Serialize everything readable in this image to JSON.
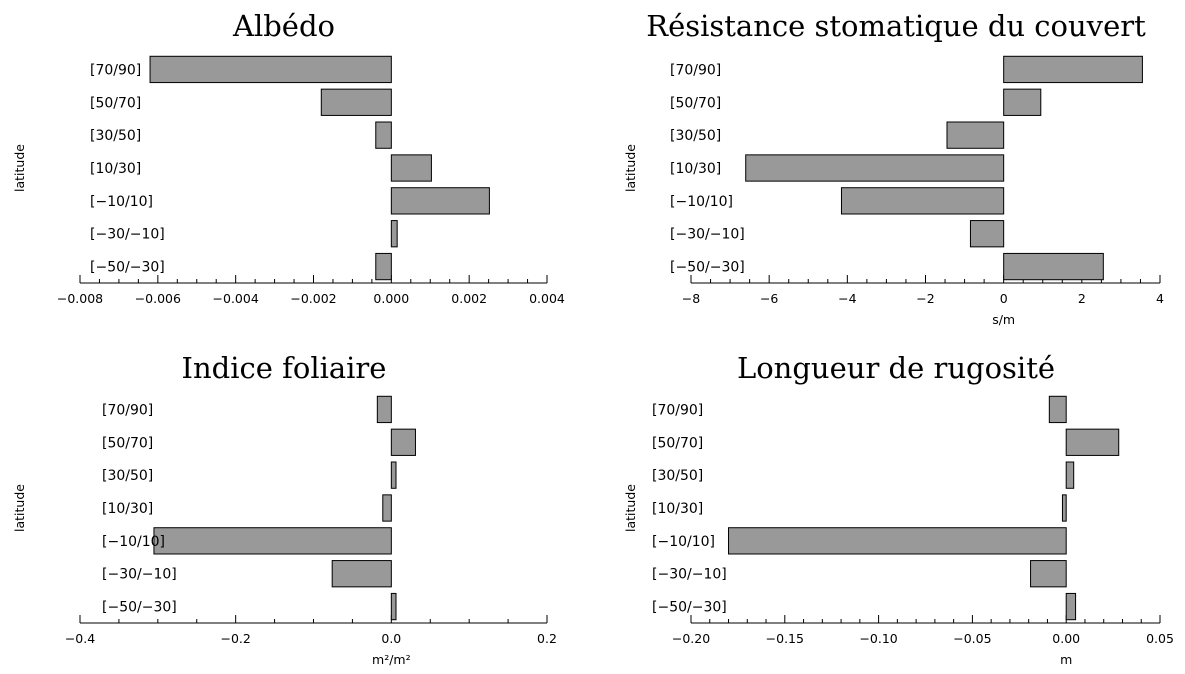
{
  "chart_data": [
    {
      "type": "bar",
      "orientation": "horizontal",
      "title": "Albédo",
      "ylabel": "latitude",
      "xlabel": "",
      "categories": [
        "[70/90]",
        "[50/70]",
        "[30/50]",
        "[10/30]",
        "[−10/10]",
        "[−30/−10]",
        "[−50/−30]"
      ],
      "values": [
        -0.0062,
        -0.0018,
        -0.0004,
        0.00103,
        0.00252,
        0.00015,
        -0.0004
      ],
      "xlim": [
        -0.008,
        0.004
      ],
      "xticks": [
        -0.008,
        -0.006,
        -0.004,
        -0.002,
        0.0,
        0.002,
        0.004
      ],
      "xtick_labels": [
        "−0.008",
        "−0.006",
        "−0.004",
        "−0.002",
        "0.000",
        "0.002",
        "0.004"
      ],
      "bar_color": "#999999",
      "grid": false
    },
    {
      "type": "bar",
      "orientation": "horizontal",
      "title": "Résistance stomatique du couvert",
      "ylabel": "latitude",
      "xlabel": "s/m",
      "categories": [
        "[70/90]",
        "[50/70]",
        "[30/50]",
        "[10/30]",
        "[−10/10]",
        "[−30/−10]",
        "[−50/−30]"
      ],
      "values": [
        3.55,
        0.95,
        -1.45,
        -6.6,
        -4.15,
        -0.85,
        2.55
      ],
      "xlim": [
        -8,
        4
      ],
      "xticks": [
        -8,
        -6,
        -4,
        -2,
        0,
        2,
        4
      ],
      "xtick_labels": [
        "−8",
        "−6",
        "−4",
        "−2",
        "0",
        "2",
        "4"
      ],
      "bar_color": "#999999",
      "grid": false
    },
    {
      "type": "bar",
      "orientation": "horizontal",
      "title": "Indice foliaire",
      "ylabel": "latitude",
      "xlabel": "m²/m²",
      "categories": [
        "[70/90]",
        "[50/70]",
        "[30/50]",
        "[10/30]",
        "[−10/10]",
        "[−30/−10]",
        "[−50/−30]"
      ],
      "values": [
        -0.018,
        0.031,
        0.006,
        -0.011,
        -0.305,
        -0.076,
        0.006
      ],
      "xlim": [
        -0.4,
        0.2
      ],
      "xticks": [
        -0.4,
        -0.2,
        0.0,
        0.2
      ],
      "xtick_labels": [
        "−0.4",
        "−0.2",
        "0.0",
        "0.2"
      ],
      "bar_color": "#999999",
      "grid": false
    },
    {
      "type": "bar",
      "orientation": "horizontal",
      "title": "Longueur de rugosité",
      "ylabel": "latitude",
      "xlabel": "m",
      "categories": [
        "[70/90]",
        "[50/70]",
        "[30/50]",
        "[10/30]",
        "[−10/10]",
        "[−30/−10]",
        "[−50/−30]"
      ],
      "values": [
        -0.009,
        0.028,
        0.004,
        -0.002,
        -0.18,
        -0.019,
        0.005
      ],
      "xlim": [
        -0.2,
        0.05
      ],
      "xticks": [
        -0.2,
        -0.15,
        -0.1,
        -0.05,
        0.0,
        0.05
      ],
      "xtick_labels": [
        "−0.20",
        "−0.15",
        "−0.10",
        "−0.05",
        "0.00",
        "0.05"
      ],
      "bar_color": "#999999",
      "grid": false
    }
  ]
}
